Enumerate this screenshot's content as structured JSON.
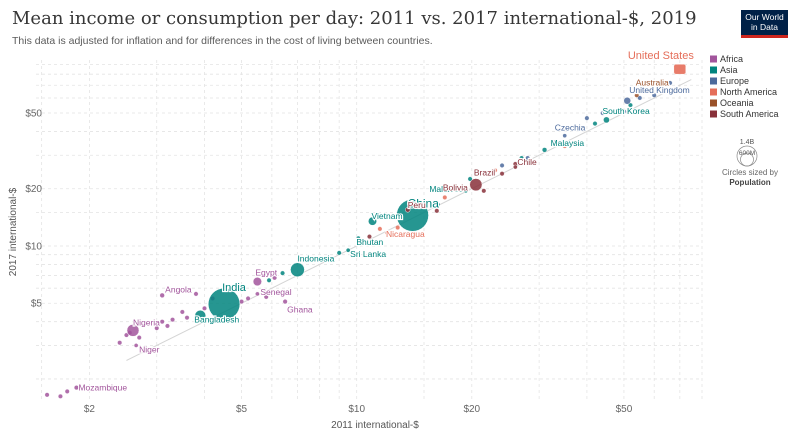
{
  "header": {
    "title": "Mean income or consumption per day: 2011 vs. 2017 international-$, 2019",
    "subtitle": "This data is adjusted for inflation and for differences in the cost of living between countries.",
    "logo_line1": "Our World",
    "logo_line2": "in Data"
  },
  "chart_data": {
    "type": "scatter",
    "xlabel": "2011 international-$",
    "ylabel": "2017 international-$",
    "x_scale": "log",
    "y_scale": "log",
    "xlim": [
      1.45,
      80
    ],
    "ylim": [
      1.55,
      95
    ],
    "x_ticks": [
      {
        "value": 2,
        "label": "$2"
      },
      {
        "value": 5,
        "label": "$5"
      },
      {
        "value": 10,
        "label": "$10"
      },
      {
        "value": 20,
        "label": "$20"
      },
      {
        "value": 50,
        "label": "$50"
      }
    ],
    "y_ticks": [
      {
        "value": 5,
        "label": "$5"
      },
      {
        "value": 10,
        "label": "$10"
      },
      {
        "value": 20,
        "label": "$20"
      },
      {
        "value": 50,
        "label": "$50"
      }
    ],
    "grid": true,
    "legend_position": "right",
    "legend": [
      {
        "name": "Africa",
        "color": "#a2559c"
      },
      {
        "name": "Asia",
        "color": "#00847e"
      },
      {
        "name": "Europe",
        "color": "#4c6a9c"
      },
      {
        "name": "North America",
        "color": "#e56e5a"
      },
      {
        "name": "Oceania",
        "color": "#9a5129"
      },
      {
        "name": "South America",
        "color": "#883039"
      }
    ],
    "size_legend": {
      "large_label": "1.4B",
      "small_label": "600M",
      "caption_line1": "Circles sized by",
      "caption_line2": "Population"
    },
    "labeled_points": [
      {
        "label": "United States",
        "region": "North America",
        "x": 70,
        "y": 85,
        "pop": 0.33
      },
      {
        "label": "Australia",
        "region": "Oceania",
        "x": 57,
        "y": 65,
        "pop": 0.026
      },
      {
        "label": "United Kingdom",
        "region": "Europe",
        "x": 51,
        "y": 58,
        "pop": 0.067
      },
      {
        "label": "South Korea",
        "region": "Asia",
        "x": 45,
        "y": 46,
        "pop": 0.052
      },
      {
        "label": "Czechia",
        "region": "Europe",
        "x": 35,
        "y": 38,
        "pop": 0.011
      },
      {
        "label": "Malaysia",
        "region": "Asia",
        "x": 31,
        "y": 32,
        "pop": 0.032
      },
      {
        "label": "Chile",
        "region": "South America",
        "x": 26,
        "y": 26,
        "pop": 0.019
      },
      {
        "label": "Brazil",
        "region": "South America",
        "x": 20.5,
        "y": 21,
        "pop": 0.21
      },
      {
        "label": "Maldives",
        "region": "Asia",
        "x": 19.3,
        "y": 19.5,
        "pop": 0.0005
      },
      {
        "label": "Bolivia",
        "region": "South America",
        "x": 16.7,
        "y": 20,
        "pop": 0.0115
      },
      {
        "label": "China",
        "region": "Asia",
        "x": 14,
        "y": 14.5,
        "pop": 1.4
      },
      {
        "label": "Peru",
        "region": "South America",
        "x": 13.6,
        "y": 15.5,
        "pop": 0.032
      },
      {
        "label": "Vietnam",
        "region": "Asia",
        "x": 11,
        "y": 13.5,
        "pop": 0.096
      },
      {
        "label": "Nicaragua",
        "region": "North America",
        "x": 12,
        "y": 11.7,
        "pop": 0.0065
      },
      {
        "label": "Bhutan",
        "region": "Asia",
        "x": 10.1,
        "y": 11,
        "pop": 0.0008
      },
      {
        "label": "Sri Lanka",
        "region": "Asia",
        "x": 9.5,
        "y": 9.5,
        "pop": 0.021
      },
      {
        "label": "Indonesia",
        "region": "Asia",
        "x": 7,
        "y": 7.5,
        "pop": 0.27
      },
      {
        "label": "Egypt",
        "region": "Africa",
        "x": 5.5,
        "y": 6.5,
        "pop": 0.1
      },
      {
        "label": "Senegal",
        "region": "Africa",
        "x": 5.5,
        "y": 5.6,
        "pop": 0.016
      },
      {
        "label": "Ghana",
        "region": "Africa",
        "x": 6.5,
        "y": 5.1,
        "pop": 0.03
      },
      {
        "label": "India",
        "region": "Asia",
        "x": 4.5,
        "y": 4.95,
        "pop": 1.37
      },
      {
        "label": "Bangladesh",
        "region": "Asia",
        "x": 3.9,
        "y": 4.3,
        "pop": 0.163
      },
      {
        "label": "Angola",
        "region": "Africa",
        "x": 3.1,
        "y": 5.5,
        "pop": 0.032
      },
      {
        "label": "Nigeria",
        "region": "Africa",
        "x": 2.6,
        "y": 3.6,
        "pop": 0.2
      },
      {
        "label": "Niger",
        "region": "Africa",
        "x": 2.65,
        "y": 3.0,
        "pop": 0.023
      },
      {
        "label": "Mozambique",
        "region": "Africa",
        "x": 1.85,
        "y": 1.8,
        "pop": 0.03
      }
    ],
    "unlabeled_points": [
      {
        "region": "Africa",
        "x": 1.55,
        "y": 1.65
      },
      {
        "region": "Africa",
        "x": 1.68,
        "y": 1.62
      },
      {
        "region": "Africa",
        "x": 1.75,
        "y": 1.72
      },
      {
        "region": "Africa",
        "x": 2.4,
        "y": 3.1
      },
      {
        "region": "Africa",
        "x": 2.5,
        "y": 3.4
      },
      {
        "region": "Africa",
        "x": 2.55,
        "y": 3.5
      },
      {
        "region": "Africa",
        "x": 2.7,
        "y": 3.3
      },
      {
        "region": "Africa",
        "x": 3.0,
        "y": 3.7
      },
      {
        "region": "Africa",
        "x": 3.2,
        "y": 3.8
      },
      {
        "region": "Africa",
        "x": 3.3,
        "y": 4.1
      },
      {
        "region": "Africa",
        "x": 3.5,
        "y": 4.5
      },
      {
        "region": "Africa",
        "x": 3.6,
        "y": 4.2
      },
      {
        "region": "Africa",
        "x": 3.8,
        "y": 5.6
      },
      {
        "region": "Africa",
        "x": 4.2,
        "y": 5.3
      },
      {
        "region": "Africa",
        "x": 5.0,
        "y": 5.1
      },
      {
        "region": "Africa",
        "x": 5.2,
        "y": 5.3
      },
      {
        "region": "Africa",
        "x": 5.8,
        "y": 5.4
      },
      {
        "region": "Africa",
        "x": 6.1,
        "y": 6.8
      },
      {
        "region": "Africa",
        "x": 3.1,
        "y": 4.0
      },
      {
        "region": "Africa",
        "x": 4.0,
        "y": 4.7
      },
      {
        "region": "Asia",
        "x": 5.9,
        "y": 6.6
      },
      {
        "region": "Asia",
        "x": 6.4,
        "y": 7.2
      },
      {
        "region": "Asia",
        "x": 9.0,
        "y": 9.2
      },
      {
        "region": "Asia",
        "x": 16.3,
        "y": 16.5
      },
      {
        "region": "Asia",
        "x": 19.8,
        "y": 22.5
      },
      {
        "region": "Asia",
        "x": 27,
        "y": 29
      },
      {
        "region": "Asia",
        "x": 42,
        "y": 44
      },
      {
        "region": "Asia",
        "x": 52,
        "y": 55
      },
      {
        "region": "Europe",
        "x": 18.5,
        "y": 19.8
      },
      {
        "region": "Europe",
        "x": 24,
        "y": 26.5
      },
      {
        "region": "Europe",
        "x": 28,
        "y": 29
      },
      {
        "region": "Europe",
        "x": 33,
        "y": 35
      },
      {
        "region": "Europe",
        "x": 40,
        "y": 47
      },
      {
        "region": "Europe",
        "x": 44,
        "y": 50
      },
      {
        "region": "Europe",
        "x": 50,
        "y": 51
      },
      {
        "region": "Europe",
        "x": 55,
        "y": 60
      },
      {
        "region": "Europe",
        "x": 60,
        "y": 62
      },
      {
        "region": "Europe",
        "x": 66,
        "y": 72
      },
      {
        "region": "North America",
        "x": 11.5,
        "y": 12.3
      },
      {
        "region": "North America",
        "x": 12.8,
        "y": 12.5
      },
      {
        "region": "North America",
        "x": 17,
        "y": 18
      },
      {
        "region": "North America",
        "x": 23,
        "y": 25
      },
      {
        "region": "North America",
        "x": 35,
        "y": 33.5
      },
      {
        "region": "South America",
        "x": 10.8,
        "y": 11.2
      },
      {
        "region": "South America",
        "x": 16.2,
        "y": 15.3
      },
      {
        "region": "South America",
        "x": 21.5,
        "y": 19.5
      },
      {
        "region": "South America",
        "x": 24,
        "y": 24
      },
      {
        "region": "South America",
        "x": 26,
        "y": 27
      },
      {
        "region": "Oceania",
        "x": 54,
        "y": 62
      }
    ]
  }
}
